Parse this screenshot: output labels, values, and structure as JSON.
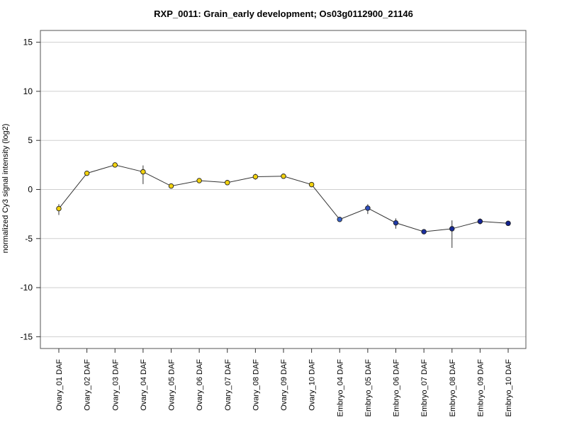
{
  "chart_data": {
    "type": "scatter",
    "title": "RXP_0011: Grain_early development; Os03g0112900_21146",
    "xlabel": "",
    "ylabel": "normalized Cy3 signal intensity (log2)",
    "ylim": [
      -16.2,
      16.2
    ],
    "yticks": [
      15,
      10,
      5,
      0,
      -5,
      -10,
      -15
    ],
    "grid": true,
    "categories": [
      "Ovary_01 DAF",
      "Ovary_02 DAF",
      "Ovary_03 DAF",
      "Ovary_04 DAF",
      "Ovary_05 DAF",
      "Ovary_06 DAF",
      "Ovary_07 DAF",
      "Ovary_08 DAF",
      "Ovary_09 DAF",
      "Ovary_10 DAF",
      "Embryo_04 DAF",
      "Embryo_05 DAF",
      "Embryo_06 DAF",
      "Embryo_07 DAF",
      "Embryo_08 DAF",
      "Embryo_09 DAF",
      "Embryo_10 DAF"
    ],
    "values": [
      -1.95,
      1.65,
      2.5,
      1.8,
      0.35,
      0.9,
      0.7,
      1.3,
      1.35,
      0.5,
      -3.05,
      -1.9,
      -3.4,
      -4.3,
      -4.0,
      -3.25,
      -3.45
    ],
    "error_low": [
      -2.6,
      1.5,
      2.35,
      0.55,
      0.2,
      0.75,
      0.45,
      1.0,
      1.15,
      0.3,
      -3.25,
      -2.5,
      -4.0,
      -4.5,
      -5.95,
      -3.55,
      -3.6
    ],
    "error_high": [
      -1.5,
      1.8,
      2.65,
      2.45,
      0.5,
      1.05,
      0.95,
      1.6,
      1.55,
      0.7,
      -2.9,
      -1.5,
      -2.95,
      -4.1,
      -3.15,
      -2.95,
      -3.3
    ],
    "colors": [
      "#f2d20f",
      "#f2d20f",
      "#f2d20f",
      "#f2d20f",
      "#f2d20f",
      "#f2d20f",
      "#f2d20f",
      "#f2d20f",
      "#f2d20f",
      "#f2d20f",
      "#3a63c7",
      "#2f4fbf",
      "#1f3aa8",
      "#1a2ea0",
      "#162a98",
      "#14249a",
      "#10208f"
    ]
  }
}
